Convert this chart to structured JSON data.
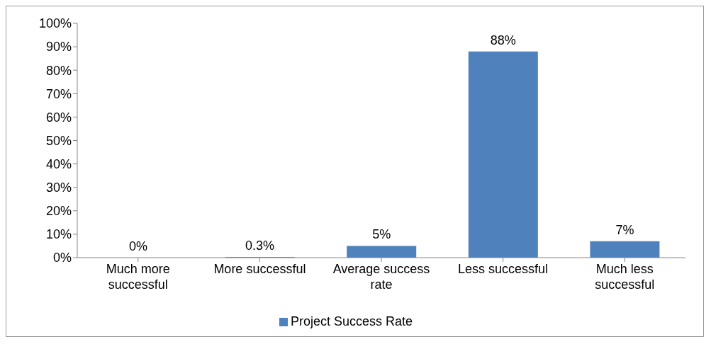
{
  "chart_data": {
    "type": "bar",
    "categories": [
      "Much more successful",
      "More successful",
      "Average success rate",
      "Less successful",
      "Much less successful"
    ],
    "series": [
      {
        "name": "Project Success Rate",
        "color": "#4f81bd",
        "values": [
          0,
          0.3,
          5,
          88,
          7
        ],
        "value_labels": [
          "0%",
          "0.3%",
          "5%",
          "88%",
          "7%"
        ]
      }
    ],
    "ylim": [
      0,
      100
    ],
    "yticks": [
      {
        "value": 0,
        "label": "0%"
      },
      {
        "value": 10,
        "label": "10%"
      },
      {
        "value": 20,
        "label": "20%"
      },
      {
        "value": 30,
        "label": "30%"
      },
      {
        "value": 40,
        "label": "40%"
      },
      {
        "value": 50,
        "label": "50%"
      },
      {
        "value": 60,
        "label": "60%"
      },
      {
        "value": 70,
        "label": "70%"
      },
      {
        "value": 80,
        "label": "80%"
      },
      {
        "value": 90,
        "label": "90%"
      },
      {
        "value": 100,
        "label": "100%"
      }
    ],
    "grid": false,
    "legend": "bottom"
  }
}
